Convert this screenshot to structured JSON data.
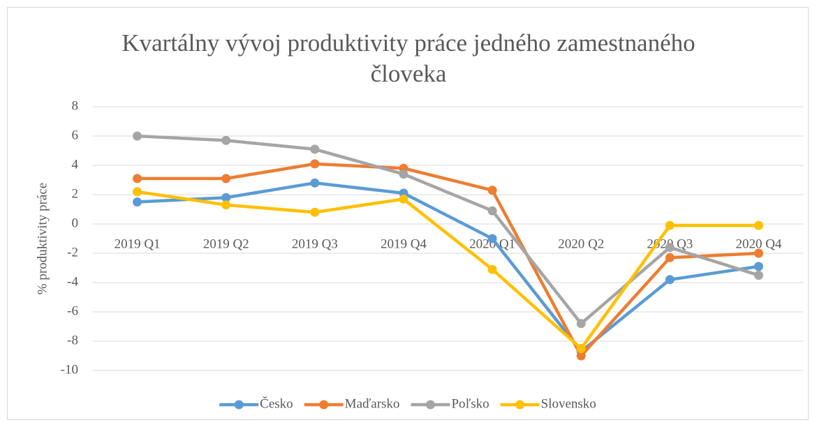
{
  "chart_data": {
    "type": "line",
    "title": "Kvartálny vývoj produktivity práce jedného zamestnaného človeka",
    "y_label": "% produktivity práce",
    "categories": [
      "2019 Q1",
      "2019 Q2",
      "2019 Q3",
      "2019 Q4",
      "2020 Q1",
      "2020 Q2",
      "2020 Q3",
      "2020 Q4"
    ],
    "series": [
      {
        "name": "Česko",
        "color": "#5b9bd5",
        "values": [
          1.5,
          1.8,
          2.8,
          2.1,
          -1.0,
          -8.7,
          -3.8,
          -2.9
        ]
      },
      {
        "name": "Maďarsko",
        "color": "#ed7d31",
        "values": [
          3.1,
          3.1,
          4.1,
          3.8,
          2.3,
          -9.0,
          -2.3,
          -2.0
        ]
      },
      {
        "name": "Poľsko",
        "color": "#a5a5a5",
        "values": [
          6.0,
          5.7,
          5.1,
          3.4,
          0.9,
          -6.8,
          -1.6,
          -3.5
        ]
      },
      {
        "name": "Slovensko",
        "color": "#ffc000",
        "values": [
          2.2,
          1.3,
          0.8,
          1.7,
          -3.1,
          -8.5,
          -0.1,
          -0.1
        ]
      }
    ],
    "ylim": [
      -10,
      8
    ],
    "yticks": [
      -10,
      -8,
      -6,
      -4,
      -2,
      0,
      2,
      4,
      6,
      8
    ],
    "grid": true,
    "legend": "bottom"
  }
}
